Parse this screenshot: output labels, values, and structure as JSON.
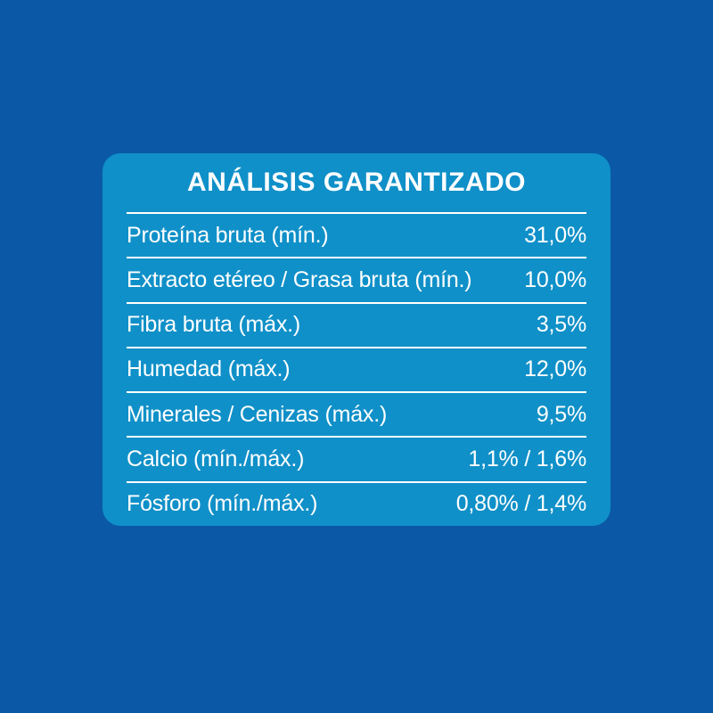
{
  "colors": {
    "background": "#0a58a6",
    "panel": "#1090c8",
    "text": "#ffffff",
    "divider": "#ffffff"
  },
  "panel": {
    "title": "ANÁLISIS GARANTIZADO",
    "rows": [
      {
        "label": "Proteína bruta (mín.)",
        "value": "31,0%"
      },
      {
        "label": "Extracto etéreo / Grasa bruta (mín.)",
        "value": "10,0%"
      },
      {
        "label": "Fibra bruta (máx.)",
        "value": "3,5%"
      },
      {
        "label": "Humedad (máx.)",
        "value": "12,0%"
      },
      {
        "label": "Minerales / Cenizas (máx.)",
        "value": "9,5%"
      },
      {
        "label": "Calcio (mín./máx.)",
        "value": "1,1% / 1,6%"
      },
      {
        "label": "Fósforo (mín./máx.)",
        "value": "0,80% / 1,4%"
      }
    ]
  }
}
